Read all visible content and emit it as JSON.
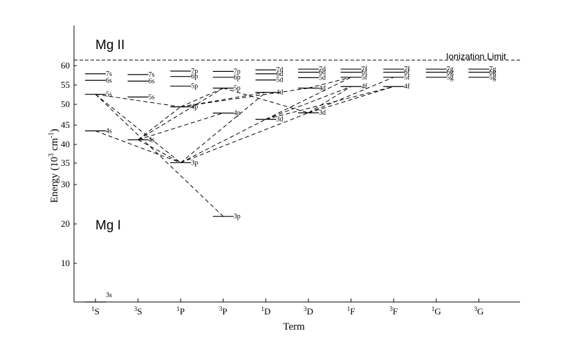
{
  "labels": {
    "mg2": "Mg II",
    "mg1": "Mg I",
    "ionization": "Ionization Limit",
    "ylabel_main": "Energy (10",
    "ylabel_exp": "3",
    "ylabel_unit": " cm",
    "ylabel_exp2": "-1",
    "ylabel_close": ")",
    "xlabel": "Term"
  },
  "y_axis": {
    "ticks": [
      10,
      20,
      30,
      35,
      40,
      45,
      50,
      55,
      60
    ]
  },
  "terms": [
    {
      "mult": "1",
      "L": "S"
    },
    {
      "mult": "3",
      "L": "S"
    },
    {
      "mult": "1",
      "L": "P"
    },
    {
      "mult": "3",
      "L": "P"
    },
    {
      "mult": "1",
      "L": "D"
    },
    {
      "mult": "3",
      "L": "D"
    },
    {
      "mult": "1",
      "L": "F"
    },
    {
      "mult": "3",
      "L": "F"
    },
    {
      "mult": "1",
      "L": "G"
    },
    {
      "mult": "3",
      "L": "G"
    }
  ],
  "ionization_limit": 61.67,
  "levels": [
    {
      "id": "1S-3s",
      "term": 0,
      "energy": 0.0,
      "label": "3s"
    },
    {
      "id": "1S-4s",
      "term": 0,
      "energy": 43.5,
      "label": "4s"
    },
    {
      "id": "1S-5s",
      "term": 0,
      "energy": 52.6,
      "label": "5s"
    },
    {
      "id": "1S-6s",
      "term": 0,
      "energy": 56.2,
      "label": "6s"
    },
    {
      "id": "1S-7s",
      "term": 0,
      "energy": 57.9,
      "label": "7s"
    },
    {
      "id": "3S-4s",
      "term": 1,
      "energy": 41.2,
      "label": "4s"
    },
    {
      "id": "3S-5s",
      "term": 1,
      "energy": 51.9,
      "label": "5s"
    },
    {
      "id": "3S-6s",
      "term": 1,
      "energy": 56.0,
      "label": "6s"
    },
    {
      "id": "3S-7s",
      "term": 1,
      "energy": 57.7,
      "label": "7s"
    },
    {
      "id": "1P-3p",
      "term": 2,
      "energy": 35.1,
      "label": "3p"
    },
    {
      "id": "1P-4p",
      "term": 2,
      "energy": 49.4,
      "label": "4p"
    },
    {
      "id": "1P-5p",
      "term": 2,
      "energy": 54.7,
      "label": "5p"
    },
    {
      "id": "1P-6p",
      "term": 2,
      "energy": 57.2,
      "label": "6p"
    },
    {
      "id": "1P-7p",
      "term": 2,
      "energy": 58.6,
      "label": "7p"
    },
    {
      "id": "3P-3p",
      "term": 3,
      "energy": 21.9,
      "label": "3p"
    },
    {
      "id": "3P-4p",
      "term": 3,
      "energy": 47.9,
      "label": "4p"
    },
    {
      "id": "3P-5p",
      "term": 3,
      "energy": 54.2,
      "label": "5p"
    },
    {
      "id": "3P-6p",
      "term": 3,
      "energy": 57.0,
      "label": "6p"
    },
    {
      "id": "3P-7p",
      "term": 3,
      "energy": 58.5,
      "label": "7p"
    },
    {
      "id": "1D-3d",
      "term": 4,
      "energy": 46.4,
      "label": "3d"
    },
    {
      "id": "1D-4d",
      "term": 4,
      "energy": 53.1,
      "label": "4d"
    },
    {
      "id": "1D-5d",
      "term": 4,
      "energy": 56.3,
      "label": "5d"
    },
    {
      "id": "1D-6d",
      "term": 4,
      "energy": 57.9,
      "label": "6d"
    },
    {
      "id": "1D-7d",
      "term": 4,
      "energy": 58.9,
      "label": "7d"
    },
    {
      "id": "3D-3d",
      "term": 5,
      "energy": 47.96,
      "label": "3d"
    },
    {
      "id": "3D-4d",
      "term": 5,
      "energy": 54.2,
      "label": "4d"
    },
    {
      "id": "3D-5d",
      "term": 5,
      "energy": 56.9,
      "label": "5d"
    },
    {
      "id": "3D-6d",
      "term": 5,
      "energy": 58.3,
      "label": "6d"
    },
    {
      "id": "3D-7d",
      "term": 5,
      "energy": 59.1,
      "label": "7d"
    },
    {
      "id": "1F-4f",
      "term": 6,
      "energy": 54.6,
      "label": "4f"
    },
    {
      "id": "1F-5f",
      "term": 6,
      "energy": 57.0,
      "label": "5f"
    },
    {
      "id": "1F-6f",
      "term": 6,
      "energy": 58.3,
      "label": "6f"
    },
    {
      "id": "1F-7f",
      "term": 6,
      "energy": 59.1,
      "label": "7f"
    },
    {
      "id": "3F-4f",
      "term": 7,
      "energy": 54.6,
      "label": "4f"
    },
    {
      "id": "3F-5f",
      "term": 7,
      "energy": 57.0,
      "label": "5f"
    },
    {
      "id": "3F-6f",
      "term": 7,
      "energy": 58.3,
      "label": "6f"
    },
    {
      "id": "3F-7f",
      "term": 7,
      "energy": 59.1,
      "label": "7f"
    },
    {
      "id": "1G-5g",
      "term": 8,
      "energy": 57.0,
      "label": "5g"
    },
    {
      "id": "1G-6g",
      "term": 8,
      "energy": 58.3,
      "label": "6g"
    },
    {
      "id": "1G-7g",
      "term": 8,
      "energy": 59.1,
      "label": "7g"
    },
    {
      "id": "3G-5g",
      "term": 9,
      "energy": 57.0,
      "label": "5g"
    },
    {
      "id": "3G-6g",
      "term": 9,
      "energy": 58.3,
      "label": "6g"
    },
    {
      "id": "3G-7g",
      "term": 9,
      "energy": 59.1,
      "label": "7g"
    }
  ],
  "transitions": [
    [
      "1S-4s",
      "1P-3p"
    ],
    [
      "1S-5s",
      "1P-3p"
    ],
    [
      "1S-5s",
      "1P-4p"
    ],
    [
      "1S-5s",
      "3P-3p"
    ],
    [
      "3S-4s",
      "1P-3p"
    ],
    [
      "3S-4s",
      "3P-4p"
    ],
    [
      "3S-4s",
      "3P-5p"
    ],
    [
      "3S-4s",
      "1P-4p"
    ],
    [
      "1P-3p",
      "1D-3d"
    ],
    [
      "1P-3p",
      "3D-3d"
    ],
    [
      "1P-3p",
      "1D-4d"
    ],
    [
      "1P-4p",
      "3P-5p"
    ],
    [
      "1P-4p",
      "1D-4d"
    ],
    [
      "1P-4p",
      "3D-4d"
    ],
    [
      "3P-5p",
      "3D-3d"
    ],
    [
      "1D-3d",
      "1F-4f"
    ],
    [
      "1D-3d",
      "3F-4f"
    ],
    [
      "1D-3d",
      "1F-5f"
    ],
    [
      "3D-3d",
      "1F-4f"
    ],
    [
      "3D-3d",
      "3F-4f"
    ],
    [
      "3D-3d",
      "3F-5f"
    ],
    [
      "3D-4d",
      "1F-5f"
    ]
  ]
}
